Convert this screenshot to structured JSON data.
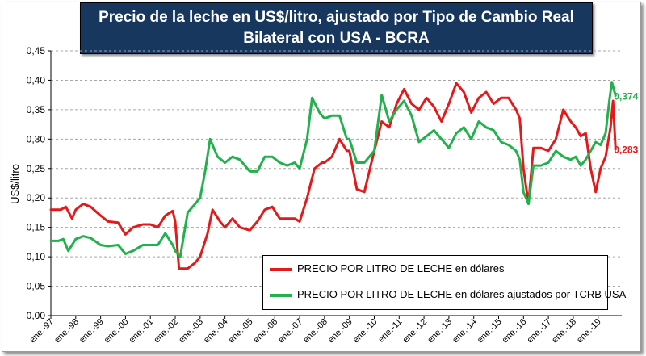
{
  "chart_data": {
    "type": "line",
    "title_line1": "Precio de la leche en US$/litro, ajustado por Tipo de Cambio Real",
    "title_line2": "Bilateral con USA - BCRA",
    "ylabel": "US$/litro",
    "xlabel": "",
    "ylim": [
      0,
      0.45
    ],
    "ytick_labels": [
      "0,00",
      "0,05",
      "0,10",
      "0,15",
      "0,20",
      "0,25",
      "0,30",
      "0,35",
      "0,40",
      "0,45"
    ],
    "yticks": [
      0,
      0.05,
      0.1,
      0.15,
      0.2,
      0.25,
      0.3,
      0.35,
      0.4,
      0.45
    ],
    "xlim": [
      1997.0,
      2019.95
    ],
    "xtick_labels": [
      "ene.-97",
      "ene.-98",
      "ene.-99",
      "ene.-00",
      "ene.-01",
      "ene.-02",
      "ene.-03",
      "ene.-04",
      "ene.-05",
      "ene.-06",
      "ene.-07",
      "ene.-08",
      "ene.-09",
      "ene.-10",
      "ene.-11",
      "ene.-12",
      "ene.-13",
      "ene.-14",
      "ene.-15",
      "ene.-16",
      "ene.-17",
      "ene.-18",
      "ene.-19"
    ],
    "xticks": [
      1997,
      1998,
      1999,
      2000,
      2001,
      2002,
      2003,
      2004,
      2005,
      2006,
      2007,
      2008,
      2009,
      2010,
      2011,
      2012,
      2013,
      2014,
      2015,
      2016,
      2017,
      2018,
      2019
    ],
    "grid": true,
    "legend_position": "bottom-right",
    "series": [
      {
        "name": "PRECIO POR LITRO DE LECHE en dólares",
        "color": "#e31a1c",
        "end_label": "0,283",
        "x": [
          1997.0,
          1997.4,
          1997.6,
          1997.85,
          1998.0,
          1998.3,
          1998.6,
          1999.0,
          1999.3,
          1999.7,
          2000.0,
          2000.3,
          2000.7,
          2001.0,
          2001.3,
          2001.6,
          2001.9,
          2002.0,
          2002.15,
          2002.5,
          2002.8,
          2003.0,
          2003.3,
          2003.5,
          2003.8,
          2004.0,
          2004.3,
          2004.6,
          2005.0,
          2005.3,
          2005.6,
          2005.9,
          2006.2,
          2006.5,
          2006.8,
          2007.0,
          2007.3,
          2007.6,
          2007.9,
          2008.0,
          2008.3,
          2008.6,
          2008.9,
          2009.0,
          2009.3,
          2009.6,
          2010.0,
          2010.3,
          2010.6,
          2010.9,
          2011.2,
          2011.5,
          2011.8,
          2012.1,
          2012.4,
          2012.7,
          2013.0,
          2013.3,
          2013.6,
          2013.9,
          2014.2,
          2014.5,
          2014.8,
          2015.1,
          2015.4,
          2015.7,
          2015.85,
          2016.0,
          2016.2,
          2016.4,
          2016.7,
          2017.0,
          2017.3,
          2017.6,
          2017.9,
          2018.1,
          2018.3,
          2018.5,
          2018.7,
          2018.9,
          2019.1,
          2019.3,
          2019.5,
          2019.6,
          2019.7
        ],
        "y": [
          0.18,
          0.18,
          0.185,
          0.165,
          0.18,
          0.19,
          0.185,
          0.17,
          0.16,
          0.158,
          0.138,
          0.15,
          0.155,
          0.155,
          0.15,
          0.17,
          0.178,
          0.16,
          0.08,
          0.08,
          0.09,
          0.1,
          0.14,
          0.18,
          0.16,
          0.15,
          0.165,
          0.15,
          0.145,
          0.16,
          0.18,
          0.185,
          0.165,
          0.165,
          0.165,
          0.16,
          0.2,
          0.25,
          0.26,
          0.26,
          0.27,
          0.3,
          0.28,
          0.28,
          0.215,
          0.21,
          0.28,
          0.33,
          0.32,
          0.36,
          0.385,
          0.36,
          0.35,
          0.37,
          0.355,
          0.33,
          0.36,
          0.395,
          0.38,
          0.345,
          0.37,
          0.38,
          0.36,
          0.37,
          0.37,
          0.35,
          0.335,
          0.25,
          0.19,
          0.285,
          0.285,
          0.28,
          0.3,
          0.35,
          0.33,
          0.32,
          0.305,
          0.31,
          0.25,
          0.21,
          0.25,
          0.27,
          0.32,
          0.365,
          0.283
        ]
      },
      {
        "name": "PRECIO POR LITRO DE LECHE en dólares ajustados por TCRB USA",
        "color": "#22b14c",
        "end_label": "0,374",
        "x": [
          1997.0,
          1997.3,
          1997.5,
          1997.7,
          1998.0,
          1998.3,
          1998.6,
          1999.0,
          1999.3,
          1999.7,
          2000.0,
          2000.3,
          2000.7,
          2001.0,
          2001.3,
          2001.6,
          2001.9,
          2002.0,
          2002.2,
          2002.5,
          2002.8,
          2003.0,
          2003.2,
          2003.4,
          2003.7,
          2004.0,
          2004.3,
          2004.6,
          2005.0,
          2005.3,
          2005.6,
          2005.9,
          2006.2,
          2006.5,
          2006.8,
          2007.0,
          2007.3,
          2007.5,
          2007.8,
          2008.0,
          2008.3,
          2008.6,
          2008.9,
          2009.0,
          2009.3,
          2009.6,
          2010.0,
          2010.3,
          2010.6,
          2010.9,
          2011.2,
          2011.5,
          2011.8,
          2012.1,
          2012.4,
          2012.7,
          2013.0,
          2013.3,
          2013.6,
          2013.9,
          2014.2,
          2014.5,
          2014.8,
          2015.1,
          2015.4,
          2015.7,
          2015.85,
          2016.0,
          2016.2,
          2016.4,
          2016.7,
          2017.0,
          2017.3,
          2017.6,
          2017.9,
          2018.1,
          2018.3,
          2018.5,
          2018.7,
          2018.9,
          2019.1,
          2019.3,
          2019.45,
          2019.55,
          2019.7
        ],
        "y": [
          0.127,
          0.127,
          0.13,
          0.11,
          0.13,
          0.135,
          0.132,
          0.12,
          0.118,
          0.12,
          0.105,
          0.11,
          0.12,
          0.12,
          0.12,
          0.14,
          0.12,
          0.11,
          0.1,
          0.175,
          0.19,
          0.2,
          0.245,
          0.3,
          0.27,
          0.26,
          0.27,
          0.265,
          0.245,
          0.245,
          0.27,
          0.27,
          0.26,
          0.255,
          0.26,
          0.25,
          0.3,
          0.37,
          0.345,
          0.335,
          0.34,
          0.34,
          0.3,
          0.3,
          0.26,
          0.26,
          0.28,
          0.375,
          0.33,
          0.35,
          0.365,
          0.34,
          0.295,
          0.305,
          0.315,
          0.3,
          0.285,
          0.31,
          0.32,
          0.3,
          0.33,
          0.32,
          0.315,
          0.295,
          0.29,
          0.28,
          0.265,
          0.21,
          0.19,
          0.255,
          0.255,
          0.26,
          0.28,
          0.27,
          0.265,
          0.27,
          0.255,
          0.265,
          0.28,
          0.295,
          0.29,
          0.31,
          0.365,
          0.397,
          0.374
        ]
      }
    ]
  }
}
